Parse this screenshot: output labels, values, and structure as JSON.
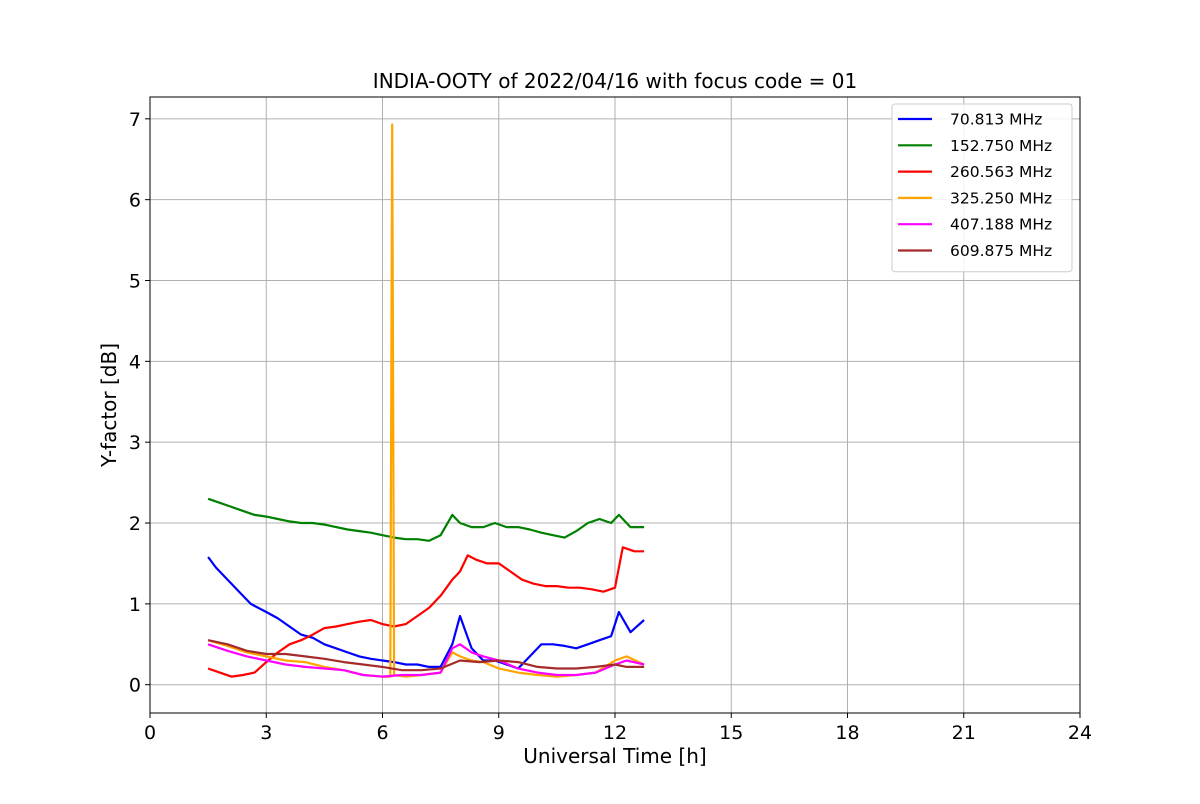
{
  "chart_data": {
    "type": "line",
    "title": "INDIA-OOTY of 2022/04/16 with focus code = 01",
    "xlabel": "Universal Time [h]",
    "ylabel": "Y-factor [dB]",
    "xlim": [
      0,
      24
    ],
    "ylim": [
      -0.35,
      7.27
    ],
    "xticks": [
      0,
      3,
      6,
      9,
      12,
      15,
      18,
      21,
      24
    ],
    "yticks": [
      0,
      1,
      2,
      3,
      4,
      5,
      6,
      7
    ],
    "grid": true,
    "legend_position": "top-right",
    "series": [
      {
        "name": " 70.813 MHz",
        "color": "#0000ff",
        "x": [
          1.5,
          1.7,
          2.0,
          2.3,
          2.6,
          3.0,
          3.3,
          3.6,
          3.9,
          4.2,
          4.5,
          4.8,
          5.1,
          5.4,
          5.7,
          6.0,
          6.3,
          6.6,
          6.9,
          7.2,
          7.5,
          7.8,
          8.0,
          8.3,
          8.6,
          8.9,
          9.2,
          9.5,
          9.8,
          10.1,
          10.4,
          10.7,
          11.0,
          11.3,
          11.6,
          11.9,
          12.1,
          12.4,
          12.75
        ],
        "y": [
          1.58,
          1.45,
          1.3,
          1.15,
          1.0,
          0.9,
          0.82,
          0.72,
          0.62,
          0.58,
          0.5,
          0.45,
          0.4,
          0.35,
          0.32,
          0.3,
          0.28,
          0.25,
          0.25,
          0.22,
          0.22,
          0.5,
          0.85,
          0.45,
          0.3,
          0.3,
          0.25,
          0.2,
          0.35,
          0.5,
          0.5,
          0.48,
          0.45,
          0.5,
          0.55,
          0.6,
          0.9,
          0.65,
          0.8
        ]
      },
      {
        "name": "152.750 MHz",
        "color": "#008000",
        "x": [
          1.5,
          1.8,
          2.1,
          2.4,
          2.7,
          3.0,
          3.3,
          3.6,
          3.9,
          4.2,
          4.5,
          4.8,
          5.1,
          5.4,
          5.7,
          6.0,
          6.3,
          6.6,
          6.9,
          7.2,
          7.5,
          7.8,
          8.0,
          8.3,
          8.6,
          8.9,
          9.2,
          9.5,
          9.8,
          10.1,
          10.4,
          10.7,
          11.0,
          11.3,
          11.6,
          11.9,
          12.1,
          12.4,
          12.75
        ],
        "y": [
          2.3,
          2.25,
          2.2,
          2.15,
          2.1,
          2.08,
          2.05,
          2.02,
          2.0,
          2.0,
          1.98,
          1.95,
          1.92,
          1.9,
          1.88,
          1.85,
          1.82,
          1.8,
          1.8,
          1.78,
          1.85,
          2.1,
          2.0,
          1.95,
          1.95,
          2.0,
          1.95,
          1.95,
          1.92,
          1.88,
          1.85,
          1.82,
          1.9,
          2.0,
          2.05,
          2.0,
          2.1,
          1.95,
          1.95
        ]
      },
      {
        "name": "260.563 MHz",
        "color": "#ff0000",
        "x": [
          1.5,
          1.8,
          2.1,
          2.4,
          2.7,
          3.0,
          3.3,
          3.6,
          3.9,
          4.2,
          4.5,
          4.8,
          5.1,
          5.4,
          5.7,
          6.0,
          6.3,
          6.6,
          6.9,
          7.2,
          7.5,
          7.8,
          8.0,
          8.2,
          8.4,
          8.7,
          9.0,
          9.3,
          9.6,
          9.9,
          10.2,
          10.5,
          10.8,
          11.1,
          11.4,
          11.7,
          12.0,
          12.2,
          12.5,
          12.75
        ],
        "y": [
          0.2,
          0.15,
          0.1,
          0.12,
          0.15,
          0.28,
          0.4,
          0.5,
          0.55,
          0.62,
          0.7,
          0.72,
          0.75,
          0.78,
          0.8,
          0.75,
          0.72,
          0.75,
          0.85,
          0.95,
          1.1,
          1.3,
          1.4,
          1.6,
          1.55,
          1.5,
          1.5,
          1.4,
          1.3,
          1.25,
          1.22,
          1.22,
          1.2,
          1.2,
          1.18,
          1.15,
          1.2,
          1.7,
          1.65,
          1.65
        ]
      },
      {
        "name": "325.250 MHz",
        "color": "#ffa500",
        "x": [
          1.5,
          2.0,
          2.5,
          3.0,
          3.5,
          4.0,
          4.5,
          5.0,
          5.5,
          6.0,
          6.2,
          6.25,
          6.3,
          6.6,
          7.0,
          7.5,
          7.8,
          8.0,
          8.3,
          8.6,
          9.0,
          9.5,
          10.0,
          10.5,
          11.0,
          11.5,
          12.0,
          12.3,
          12.75
        ],
        "y": [
          0.55,
          0.48,
          0.4,
          0.35,
          0.3,
          0.28,
          0.22,
          0.18,
          0.12,
          0.1,
          0.1,
          6.93,
          0.12,
          0.1,
          0.12,
          0.15,
          0.4,
          0.35,
          0.3,
          0.28,
          0.2,
          0.15,
          0.12,
          0.1,
          0.12,
          0.15,
          0.3,
          0.35,
          0.25
        ]
      },
      {
        "name": "407.188 MHz",
        "color": "#ff00ff",
        "x": [
          1.5,
          2.0,
          2.5,
          3.0,
          3.5,
          4.0,
          4.5,
          5.0,
          5.5,
          6.0,
          6.5,
          7.0,
          7.5,
          7.8,
          8.0,
          8.3,
          8.6,
          9.0,
          9.5,
          10.0,
          10.5,
          11.0,
          11.5,
          12.0,
          12.3,
          12.75
        ],
        "y": [
          0.5,
          0.42,
          0.35,
          0.3,
          0.25,
          0.22,
          0.2,
          0.18,
          0.12,
          0.1,
          0.12,
          0.12,
          0.15,
          0.45,
          0.5,
          0.4,
          0.35,
          0.3,
          0.2,
          0.15,
          0.12,
          0.12,
          0.15,
          0.25,
          0.3,
          0.25
        ]
      },
      {
        "name": "609.875 MHz",
        "color": "#a52a2a",
        "x": [
          1.5,
          2.0,
          2.5,
          3.0,
          3.5,
          4.0,
          4.5,
          5.0,
          5.5,
          6.0,
          6.5,
          7.0,
          7.5,
          8.0,
          8.5,
          9.0,
          9.5,
          10.0,
          10.5,
          11.0,
          11.5,
          12.0,
          12.3,
          12.75
        ],
        "y": [
          0.55,
          0.5,
          0.42,
          0.38,
          0.38,
          0.35,
          0.32,
          0.28,
          0.25,
          0.22,
          0.18,
          0.18,
          0.2,
          0.3,
          0.28,
          0.3,
          0.28,
          0.22,
          0.2,
          0.2,
          0.22,
          0.25,
          0.22,
          0.22
        ]
      }
    ]
  }
}
